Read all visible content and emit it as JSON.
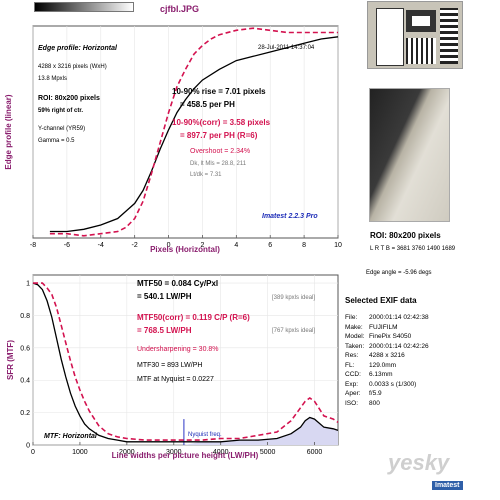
{
  "file_title": "cjfbl.JPG",
  "edge_panel": {
    "title": "Edge profile: Horizontal",
    "date": "28-Jul-2011 14:37:04",
    "size_line": "4288 x 3216 pixels (WxH)",
    "mpxls": "13.8 Mpxls",
    "roi_line": "ROI: 80x200 pixels",
    "right_of_ctr": "59% right of ctr.",
    "ychannel": "Y-channel  (YR59)",
    "gamma": "Gamma = 0.5",
    "rise_line1": "10-90% rise = 7.01 pixels",
    "rise_line2": "= 458.5 per PH",
    "corr_line1": "10-90%(corr) = 3.58 pixels",
    "corr_line2": "= 897.7 per PH  (R=6)",
    "overshoot": "Overshoot = 2.34%",
    "dk_lt": "Dk, lt Mls = 28.8, 211",
    "lt_dk": "Lt/dk = 7.31",
    "version": "Imatest 2.2.3 Pro",
    "ylabel": "Edge profile (linear)",
    "xlabel": "Pixels (Horizontal)"
  },
  "mtf_panel": {
    "mtf50_line1": "MTF50 = 0.084 Cy/Pxl",
    "mtf50_line2": "= 540.1 LW/PH",
    "mtf50_ideal": "[389 kpxls ideal]",
    "corr_line1": "MTF50(corr) = 0.119 C/P  (R=6)",
    "corr_line2": "= 768.5 LW/PH",
    "corr_ideal": "[767 kpxls ideal]",
    "undersharpening": "Undersharpening = 30.8%",
    "mtf30": "MTF30 = 893 LW/PH",
    "nyquist_mtf": "MTF at Nyquist = 0.0227",
    "nyquist_label": "Nyquist freq.",
    "corner_label": "MTF: Horizontal",
    "ylabel": "SFR (MTF)",
    "xlabel": "Line widths per picture height (LW/PH)"
  },
  "side": {
    "roi_title": "ROI: 80x200 pixels",
    "ltrb": "L R T B = 3681 3760  1490 1689",
    "edge_angle": "Edge angle = -5.96 degs",
    "exif_title": "Selected EXIF data",
    "exif": [
      {
        "key": "File:",
        "val": "2000:01:14 02:42:38"
      },
      {
        "key": "Make:",
        "val": "FUJIFILM"
      },
      {
        "key": "Model:",
        "val": "FinePix S4050"
      },
      {
        "key": "Taken:",
        "val": "2000:01:14 02:42:26"
      },
      {
        "key": "Res:",
        "val": "4288 x 3216"
      },
      {
        "key": "FL:",
        "val": "129.0mm"
      },
      {
        "key": "CCD:",
        "val": "6.13mm"
      },
      {
        "key": "Exp:",
        "val": "0.0033 s  (1/300)"
      },
      {
        "key": "Aper:",
        "val": "f/5.9"
      },
      {
        "key": "ISO:",
        "val": "800"
      }
    ],
    "watermark": "yesky",
    "imatest_logo": "Imatest"
  },
  "colors": {
    "measured": "#000000",
    "corrected": "#d3124f",
    "frame": "#555555",
    "nyquist": "#2b35c6",
    "title": "#8a1e6e"
  },
  "chart_data": [
    {
      "type": "line",
      "title": "Edge profile: Horizontal",
      "xlabel": "Pixels (Horizontal)",
      "ylabel": "Edge profile (linear)",
      "xlim": [
        -8,
        10
      ],
      "xticks": [
        -8,
        -6,
        -4,
        -2,
        0,
        2,
        4,
        6,
        8,
        10
      ],
      "ylim": [
        0,
        1
      ],
      "series": [
        {
          "name": "measured",
          "style": "solid",
          "color": "#000000",
          "x": [
            -7,
            -6,
            -5,
            -4,
            -3,
            -2,
            -1.5,
            -1,
            -0.5,
            0,
            0.5,
            1,
            1.5,
            2,
            3,
            4,
            5,
            6,
            7,
            8,
            9,
            10
          ],
          "y": [
            0.03,
            0.03,
            0.04,
            0.06,
            0.09,
            0.16,
            0.22,
            0.31,
            0.41,
            0.5,
            0.58,
            0.64,
            0.69,
            0.73,
            0.78,
            0.82,
            0.84,
            0.86,
            0.88,
            0.9,
            0.92,
            0.93
          ]
        },
        {
          "name": "corrected (R=6)",
          "style": "dashed",
          "color": "#d3124f",
          "x": [
            -7,
            -6,
            -5,
            -4,
            -3,
            -2.5,
            -2,
            -1.5,
            -1,
            -0.5,
            0,
            0.5,
            1,
            1.5,
            2,
            2.5,
            3,
            4,
            5,
            6,
            7,
            8,
            9,
            10
          ],
          "y": [
            0.02,
            0.02,
            0.01,
            0.02,
            0.03,
            0.05,
            0.09,
            0.17,
            0.3,
            0.44,
            0.58,
            0.7,
            0.78,
            0.85,
            0.89,
            0.92,
            0.94,
            0.96,
            0.97,
            0.96,
            0.95,
            0.95,
            0.95,
            0.95
          ]
        }
      ]
    },
    {
      "type": "line",
      "title": "MTF: Horizontal",
      "xlabel": "Line widths per picture height (LW/PH)",
      "ylabel": "SFR (MTF)",
      "xlim": [
        0,
        6500
      ],
      "xticks": [
        0,
        1000,
        2000,
        3000,
        4000,
        5000,
        6000
      ],
      "ylim": [
        0,
        1.05
      ],
      "yticks": [
        0,
        0.2,
        0.4,
        0.6,
        0.8,
        1
      ],
      "nyquist_x": 3216,
      "series": [
        {
          "name": "measured",
          "style": "solid",
          "color": "#000000",
          "x": [
            0,
            100,
            200,
            300,
            400,
            500,
            600,
            700,
            800,
            900,
            1000,
            1100,
            1200,
            1400,
            1600,
            1800,
            2000,
            2400,
            2800,
            3200,
            3600,
            4000,
            4400,
            4800,
            5200,
            5500,
            5700,
            5800,
            5900,
            6000,
            6200,
            6400,
            6500
          ],
          "y": [
            1.0,
            0.99,
            0.96,
            0.89,
            0.79,
            0.66,
            0.53,
            0.42,
            0.32,
            0.24,
            0.18,
            0.13,
            0.1,
            0.06,
            0.04,
            0.03,
            0.02,
            0.02,
            0.02,
            0.02,
            0.02,
            0.02,
            0.03,
            0.03,
            0.04,
            0.07,
            0.11,
            0.15,
            0.17,
            0.16,
            0.11,
            0.1,
            0.09
          ]
        },
        {
          "name": "corrected (R=6)",
          "style": "dashed",
          "color": "#d3124f",
          "x": [
            0,
            100,
            200,
            300,
            400,
            500,
            600,
            700,
            800,
            900,
            1000,
            1100,
            1200,
            1400,
            1600,
            1800,
            2000,
            2400,
            2800,
            3200,
            3600,
            4000,
            4400,
            4800,
            5200,
            5500,
            5700,
            5800,
            5900,
            6000,
            6200,
            6400,
            6500
          ],
          "y": [
            1.0,
            1.0,
            1.0,
            0.97,
            0.93,
            0.85,
            0.74,
            0.63,
            0.52,
            0.42,
            0.34,
            0.27,
            0.21,
            0.12,
            0.07,
            0.05,
            0.04,
            0.03,
            0.03,
            0.03,
            0.03,
            0.04,
            0.04,
            0.06,
            0.08,
            0.15,
            0.23,
            0.27,
            0.29,
            0.27,
            0.18,
            0.16,
            0.14
          ]
        }
      ]
    }
  ]
}
